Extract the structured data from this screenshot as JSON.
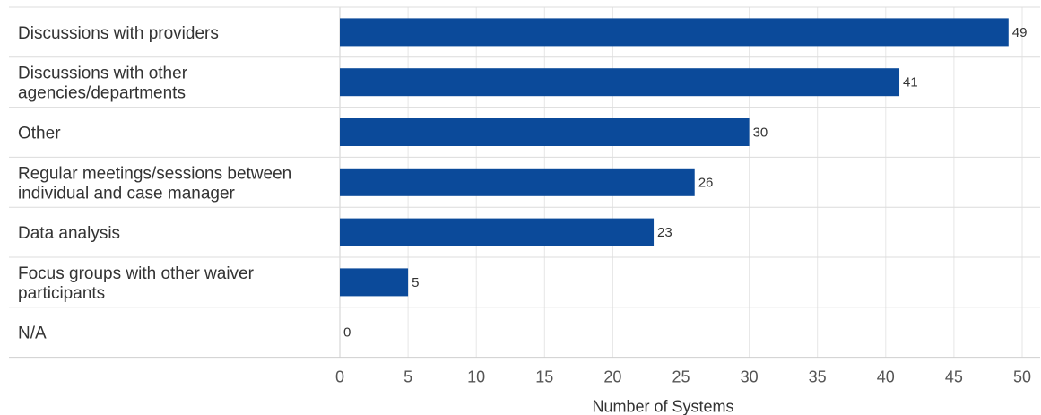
{
  "chart_data": {
    "type": "bar",
    "orientation": "horizontal",
    "categories": [
      [
        "Discussions with providers"
      ],
      [
        "Discussions with other",
        "agencies/departments"
      ],
      [
        "Other"
      ],
      [
        "Regular meetings/sessions between",
        "individual and case manager"
      ],
      [
        "Data analysis"
      ],
      [
        "Focus groups with other waiver",
        "participants"
      ],
      [
        "N/A"
      ]
    ],
    "values": [
      49,
      41,
      30,
      26,
      23,
      5,
      0
    ],
    "value_labels": [
      "49",
      "41",
      "30",
      "26",
      "23",
      "5",
      "0"
    ],
    "x_ticks": [
      0,
      5,
      10,
      15,
      20,
      25,
      30,
      35,
      40,
      45,
      50
    ],
    "x_tick_labels": [
      "0",
      "5",
      "10",
      "15",
      "20",
      "25",
      "30",
      "35",
      "40",
      "45",
      "50"
    ],
    "xlim": [
      0,
      50
    ],
    "xlabel": "Number of Systems",
    "ylabel": "",
    "title": "",
    "grid": true,
    "legend": "none",
    "colors": {
      "bar": "#0b4a9a",
      "grid": "#e6e6e6",
      "row_divider": "#cfcfcf",
      "text": "#333333"
    }
  }
}
